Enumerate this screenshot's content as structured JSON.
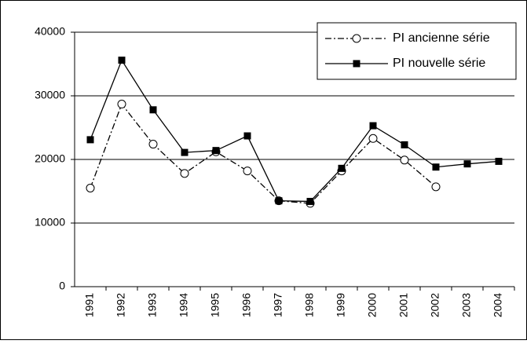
{
  "chart_data": {
    "type": "line",
    "categories": [
      "1991",
      "1992",
      "1993",
      "1994",
      "1995",
      "1996",
      "1997",
      "1998",
      "1999",
      "2000",
      "2001",
      "2002",
      "2003",
      "2004"
    ],
    "series": [
      {
        "name": "PI ancienne série",
        "color": "#000000",
        "dash": "dashdot",
        "marker": "open-circle",
        "values": [
          15500,
          28700,
          22400,
          17800,
          21200,
          18200,
          13500,
          13100,
          18200,
          23300,
          19900,
          15700,
          null,
          null
        ]
      },
      {
        "name": "PI nouvelle série",
        "color": "#000000",
        "dash": "solid",
        "marker": "filled-square",
        "values": [
          23100,
          35600,
          27800,
          21100,
          21400,
          23700,
          13500,
          13400,
          18600,
          25300,
          22300,
          18800,
          19300,
          19700
        ]
      }
    ],
    "ylim": [
      0,
      40000
    ],
    "yticks": [
      0,
      10000,
      20000,
      30000,
      40000
    ],
    "grid": true,
    "legend": "top-right"
  }
}
